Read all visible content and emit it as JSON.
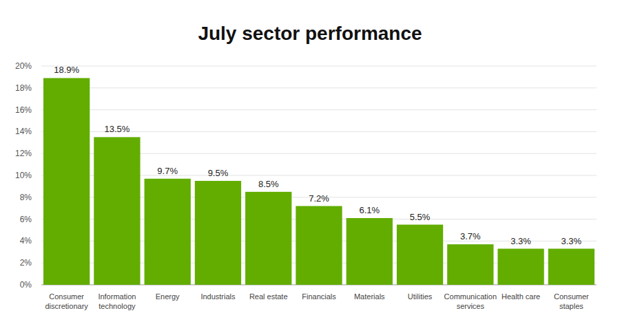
{
  "chart_data": {
    "type": "bar",
    "title": "July sector performance",
    "categories": [
      "Consumer discretionary",
      "Information technology",
      "Energy",
      "Industrials",
      "Real estate",
      "Financials",
      "Materials",
      "Utilities",
      "Communication services",
      "Health care",
      "Consumer staples"
    ],
    "values": [
      18.9,
      13.5,
      9.7,
      9.5,
      8.5,
      7.2,
      6.1,
      5.5,
      3.7,
      3.3,
      3.3
    ],
    "value_labels": [
      "18.9%",
      "13.5%",
      "9.7%",
      "9.5%",
      "8.5%",
      "7.2%",
      "6.1%",
      "5.5%",
      "3.7%",
      "3.3%",
      "3.3%"
    ],
    "color": "#62ad00",
    "ylim": [
      0,
      20
    ],
    "yticks": [
      {
        "value": 0,
        "label": "0%"
      },
      {
        "value": 2,
        "label": "2%"
      },
      {
        "value": 4,
        "label": "4%"
      },
      {
        "value": 6,
        "label": "6%"
      },
      {
        "value": 8,
        "label": "8%"
      },
      {
        "value": 10,
        "label": "10%"
      },
      {
        "value": 12,
        "label": "12%"
      },
      {
        "value": 14,
        "label": "14%"
      },
      {
        "value": 16,
        "label": "16%"
      },
      {
        "value": 18,
        "label": "18%"
      },
      {
        "value": 20,
        "label": "20%"
      }
    ],
    "grid": true,
    "data_labels": true
  }
}
